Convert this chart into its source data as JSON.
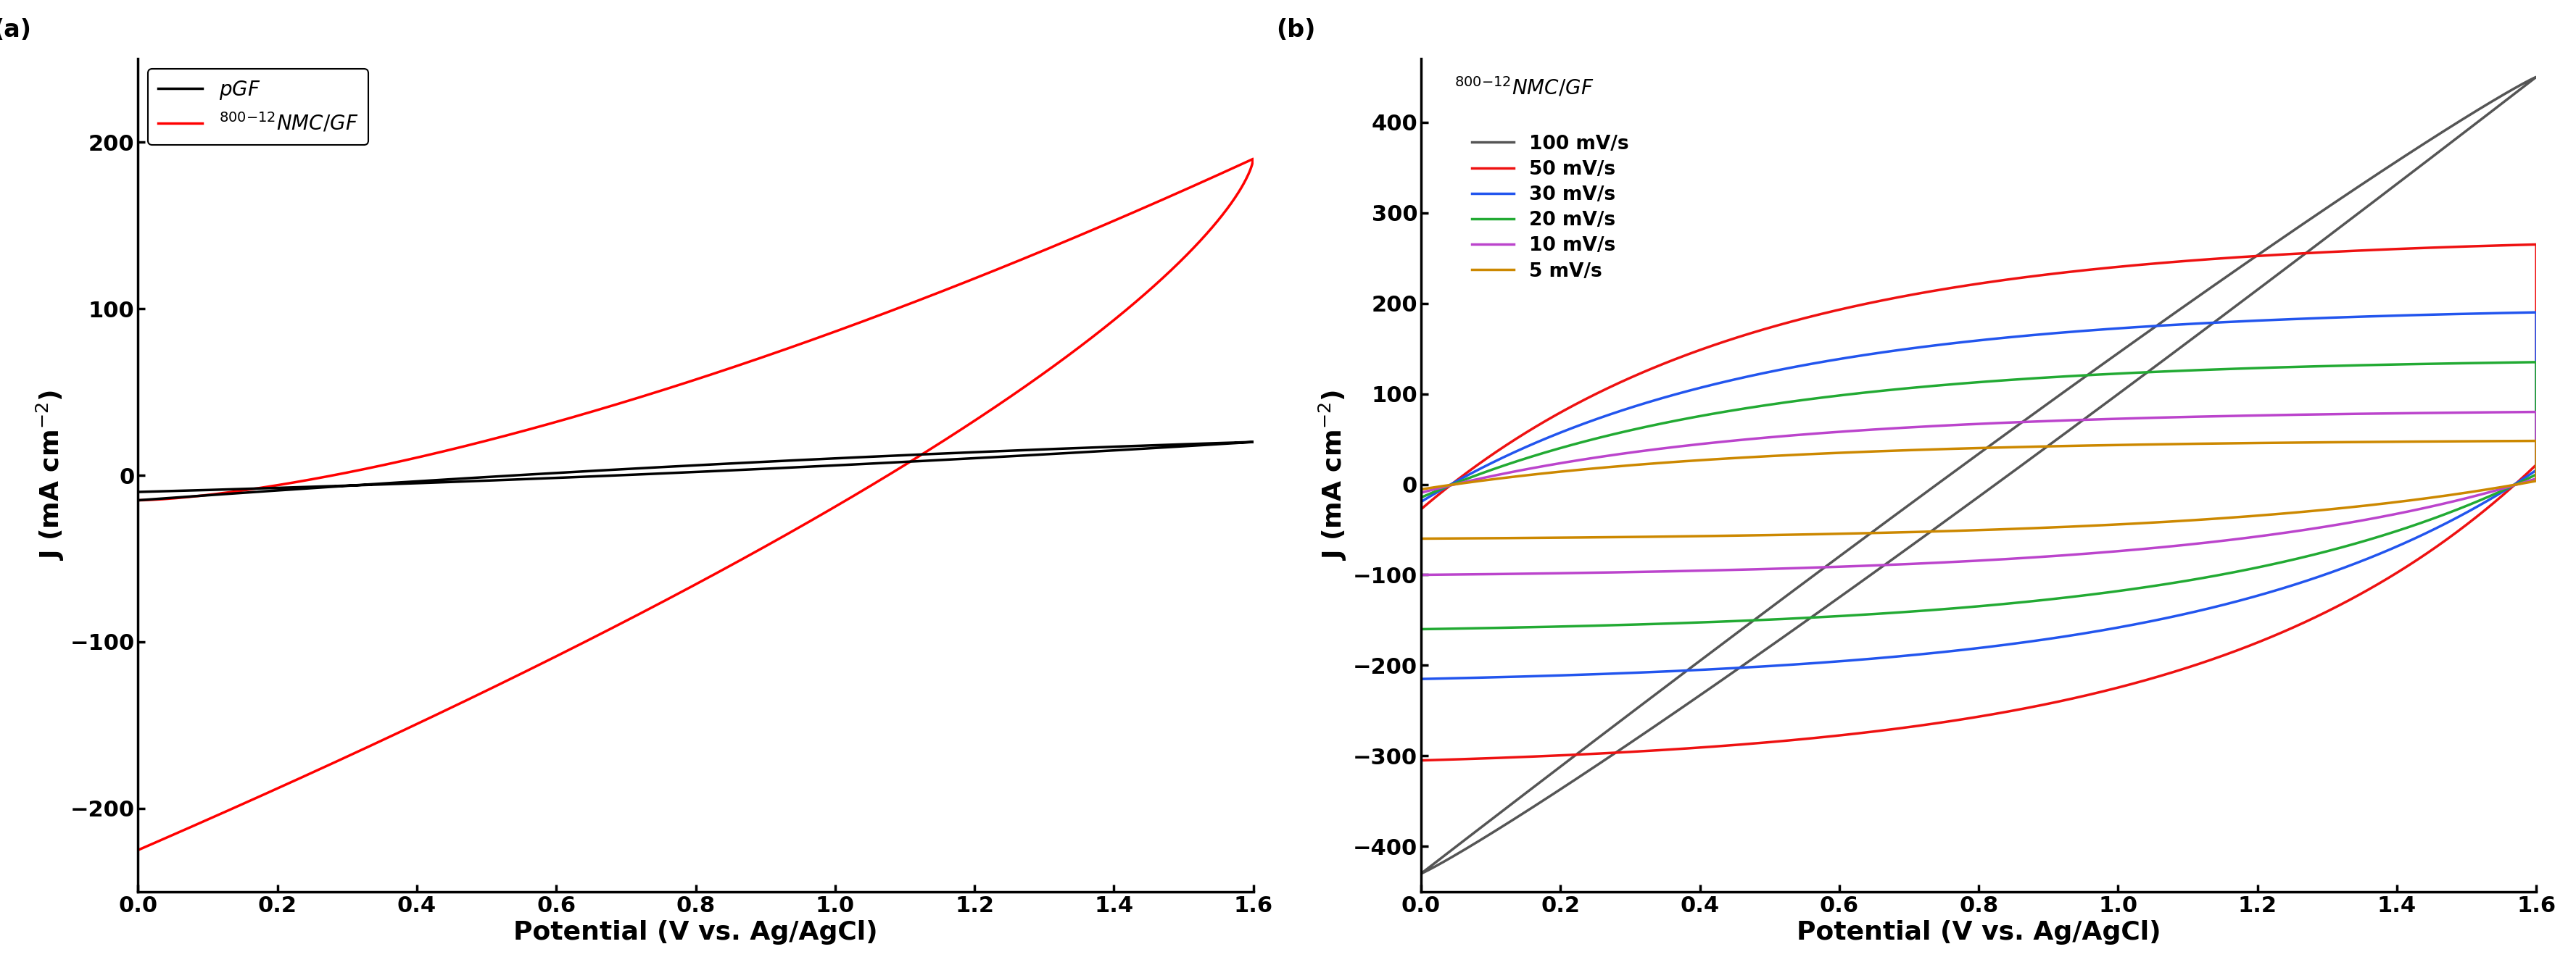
{
  "panel_a": {
    "xlabel": "Potential (V vs. Ag/AgCl)",
    "xlim": [
      0,
      1.6
    ],
    "ylim": [
      -250,
      250
    ],
    "yticks": [
      -200,
      -100,
      0,
      100,
      200
    ],
    "xticks": [
      0.0,
      0.2,
      0.4,
      0.6,
      0.8,
      1.0,
      1.2,
      1.4,
      1.6
    ]
  },
  "panel_b": {
    "xlabel": "Potential (V vs. Ag/AgCl)",
    "xlim": [
      0,
      1.6
    ],
    "ylim": [
      -450,
      470
    ],
    "yticks": [
      -400,
      -300,
      -200,
      -100,
      0,
      100,
      200,
      300,
      400
    ],
    "xticks": [
      0.0,
      0.2,
      0.4,
      0.6,
      0.8,
      1.0,
      1.2,
      1.4,
      1.6
    ],
    "curves": [
      {
        "label": "100 mV/s",
        "color": "#555555",
        "j_up": 450,
        "j_dn": -430,
        "v_start": 0.0,
        "v_end": 1.6
      },
      {
        "label": "50 mV/s",
        "color": "#EE1111",
        "j_up": 265,
        "j_dn": -305,
        "v_start": 0.0,
        "v_end": 1.6
      },
      {
        "label": "30 mV/s",
        "color": "#2255EE",
        "j_up": 190,
        "j_dn": -215,
        "v_start": 0.0,
        "v_end": 1.6
      },
      {
        "label": "20 mV/s",
        "color": "#22AA33",
        "j_up": 135,
        "j_dn": -160,
        "v_start": 0.0,
        "v_end": 1.6
      },
      {
        "label": "10 mV/s",
        "color": "#BB44CC",
        "j_up": 80,
        "j_dn": -100,
        "v_start": 0.0,
        "v_end": 1.6
      },
      {
        "label": "5 mV/s",
        "color": "#CC8800",
        "j_up": 48,
        "j_dn": -60,
        "v_start": 0.0,
        "v_end": 1.6
      }
    ]
  },
  "pgf_color": "#000000",
  "nmc_color": "#FF0000",
  "linewidth": 2.5,
  "fontsize_label": 26,
  "fontsize_tick": 22,
  "fontsize_legend": 20,
  "fontsize_panel": 24
}
